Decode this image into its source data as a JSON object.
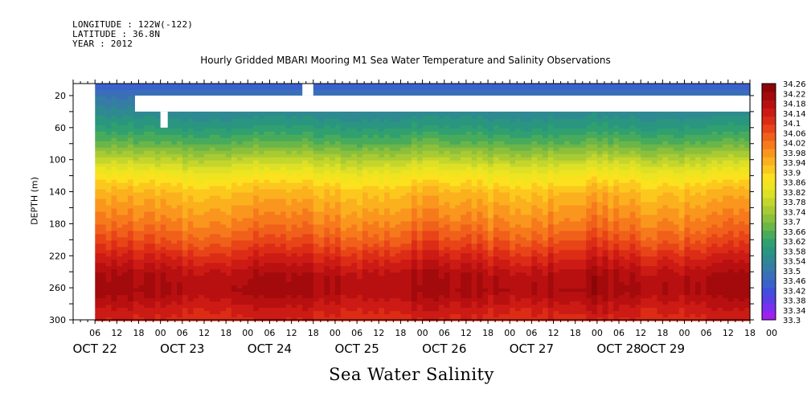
{
  "header": {
    "longitude": "LONGITUDE : 122W(-122)",
    "latitude": "LATITUDE : 36.8N",
    "year": "YEAR : 2012"
  },
  "chart_data": {
    "type": "heatmap",
    "title": "Hourly Gridded MBARI Mooring M1 Sea Water Temperature and Salinity Observations",
    "xlabel": "Sea Water Salinity",
    "ylabel": "DEPTH (m)",
    "y_axis": {
      "range": [
        300,
        5
      ],
      "ticks": [
        20,
        60,
        100,
        140,
        180,
        220,
        260,
        300
      ],
      "inverted": true
    },
    "x_axis": {
      "range_hours": [
        0,
        186
      ],
      "hour_ticks": [
        "06",
        "12",
        "18",
        "00",
        "06",
        "12",
        "18",
        "00",
        "06",
        "12",
        "18",
        "00",
        "06",
        "12",
        "18",
        "00",
        "06",
        "12",
        "18",
        "00",
        "06",
        "12",
        "18",
        "00",
        "06",
        "12",
        "18",
        "00",
        "06",
        "12",
        "18",
        "00"
      ],
      "date_labels": [
        {
          "label": "OCT 22",
          "hour": 6
        },
        {
          "label": "OCT 23",
          "hour": 30
        },
        {
          "label": "OCT 24",
          "hour": 54
        },
        {
          "label": "OCT 25",
          "hour": 78
        },
        {
          "label": "OCT 26",
          "hour": 102
        },
        {
          "label": "OCT 27",
          "hour": 126
        },
        {
          "label": "OCT 28",
          "hour": 150
        },
        {
          "label": "OCT 29",
          "hour": 162
        }
      ]
    },
    "data_start_hour": 6,
    "colorbar": {
      "min": 33.3,
      "max": 34.26,
      "labels": [
        "34.26",
        "34.22",
        "34.18",
        "34.14",
        "34.1",
        "34.06",
        "34.02",
        "33.98",
        "33.94",
        "33.9",
        "33.86",
        "33.82",
        "33.78",
        "33.74",
        "33.7",
        "33.66",
        "33.62",
        "33.58",
        "33.54",
        "33.5",
        "33.46",
        "33.42",
        "33.38",
        "33.34",
        "33.3"
      ],
      "colors": [
        "#a020f0",
        "#7b2ff0",
        "#5a3ee6",
        "#4050dc",
        "#3a62cc",
        "#3a6fb8",
        "#357da4",
        "#2e8a90",
        "#2a9680",
        "#30a070",
        "#48ab5c",
        "#6bb648",
        "#8cc03c",
        "#a8cb34",
        "#c4d62c",
        "#dde026",
        "#eee420",
        "#fbe11e",
        "#fcc81e",
        "#fbb01e",
        "#fa961e",
        "#f67a1c",
        "#f0601a",
        "#e84418",
        "#dc2c16",
        "#cc1a14",
        "#b81010",
        "#a20a0c",
        "#8c0608"
      ]
    },
    "profile": [
      {
        "depth": 5,
        "value": 33.45
      },
      {
        "depth": 10,
        "value": 33.46
      },
      {
        "depth": 40,
        "value": 33.54
      },
      {
        "depth": 60,
        "value": 33.6
      },
      {
        "depth": 80,
        "value": 33.67
      },
      {
        "depth": 100,
        "value": 33.77
      },
      {
        "depth": 120,
        "value": 33.86
      },
      {
        "depth": 140,
        "value": 33.93
      },
      {
        "depth": 160,
        "value": 33.97
      },
      {
        "depth": 180,
        "value": 34.01
      },
      {
        "depth": 200,
        "value": 34.06
      },
      {
        "depth": 220,
        "value": 34.12
      },
      {
        "depth": 245,
        "value": 34.19
      },
      {
        "depth": 265,
        "value": 34.2
      },
      {
        "depth": 285,
        "value": 34.15
      },
      {
        "depth": 300,
        "value": 34.12
      }
    ],
    "missing_regions": [
      {
        "hour_from": 0,
        "hour_to": 6,
        "depth_from": 5,
        "depth_to": 300
      },
      {
        "hour_from": 17,
        "hour_to": 186,
        "depth_from": 20,
        "depth_to": 40
      },
      {
        "hour_from": 24,
        "hour_to": 26,
        "depth_from": 40,
        "depth_to": 60
      },
      {
        "hour_from": 63,
        "hour_to": 66,
        "depth_from": 5,
        "depth_to": 20
      }
    ]
  }
}
